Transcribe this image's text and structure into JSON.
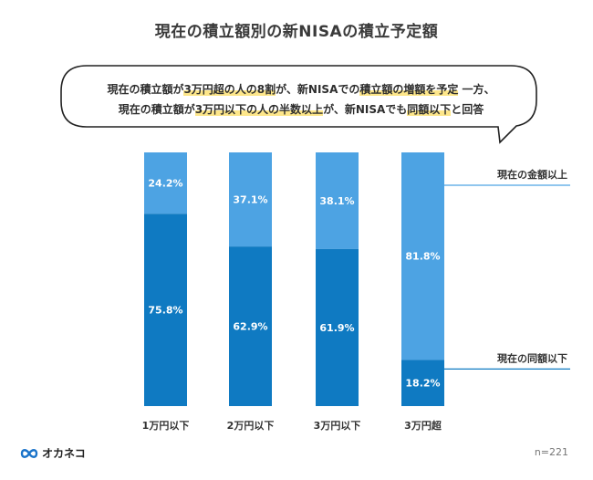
{
  "title": "現在の積立額別の新NISAの積立予定額",
  "callout": {
    "line1_pre": "現在の積立額が",
    "line1_hl1": "3万円超の人の8割",
    "line1_mid": "が、新NISAでの",
    "line1_hl2": "積立額の増額を予定",
    "line1_post": " 一方、",
    "line2_pre": "現在の積立額が",
    "line2_hl1": "3万円以下の人の半数以上",
    "line2_mid": "が、新NISAでも",
    "line2_hl2": "同額以下",
    "line2_post": "と回答"
  },
  "chart_data": {
    "type": "bar",
    "stacked": true,
    "percent": true,
    "categories": [
      "1万円以下",
      "2万円以下",
      "3万円以下",
      "3万円超"
    ],
    "series": [
      {
        "name": "現在の同額以下",
        "values": [
          75.8,
          62.9,
          61.9,
          18.2
        ],
        "color": "#0f7ac2"
      },
      {
        "name": "現在の金額以上",
        "values": [
          24.2,
          37.1,
          38.1,
          81.8
        ],
        "color": "#4da3e3"
      }
    ],
    "ylim": [
      0,
      100
    ],
    "value_suffix": "%",
    "grid": false
  },
  "logo": {
    "text": "オカネコ",
    "icon": "infinity-icon",
    "color": "#1a73c9"
  },
  "footnote": "n=221",
  "colors": {
    "dark_blue": "#0f7ac2",
    "light_blue": "#4da3e3",
    "highlight": "#fde68a"
  }
}
